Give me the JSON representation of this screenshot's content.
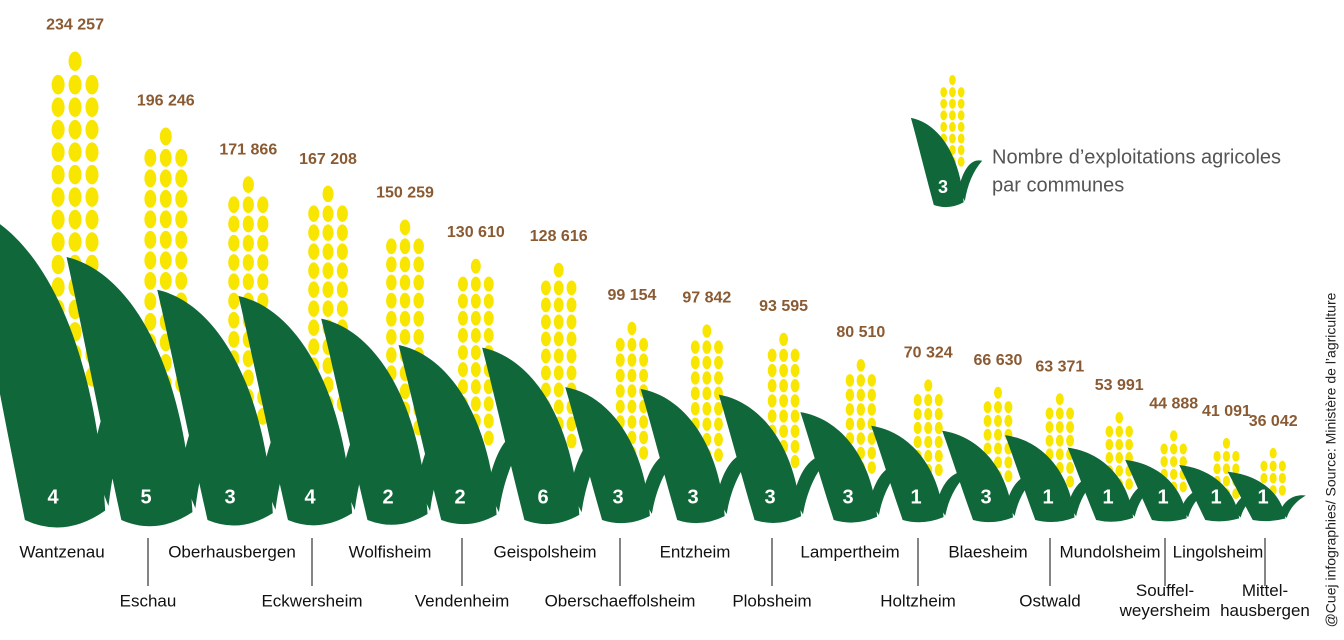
{
  "chart_data": {
    "type": "corn-pictogram",
    "categories": [
      "Wantzenau",
      "Eschau",
      "Oberhausbergen",
      "Eckwersheim",
      "Wolfisheim",
      "Vendenheim",
      "Geispolsheim",
      "Oberschaeffolsheim",
      "Entzheim",
      "Plobsheim",
      "Lampertheim",
      "Holtzheim",
      "Blaesheim",
      "Ostwald",
      "Mundolsheim",
      "Souffel-\nweyersheim",
      "Lingolsheim",
      "Mittel-\nhausbergen"
    ],
    "values": [
      234257,
      196246,
      171866,
      167208,
      150259,
      130610,
      128616,
      99154,
      97842,
      93595,
      80510,
      70324,
      66630,
      63371,
      53991,
      44888,
      41091,
      36042
    ],
    "value_labels": [
      "234 257",
      "196 246",
      "171 866",
      "167 208",
      "150 259",
      "130 610",
      "128 616",
      "99 154",
      "97 842",
      "93 595",
      "80 510",
      "70 324",
      "66 630",
      "63 371",
      "53 991",
      "44 888",
      "41 091",
      "36 042"
    ],
    "counts": [
      4,
      5,
      3,
      4,
      2,
      2,
      6,
      3,
      3,
      3,
      3,
      1,
      3,
      1,
      1,
      1,
      1,
      1
    ],
    "legend_count": 3,
    "legend_text": [
      "Nombre d’exploitations agricoles",
      "par communes"
    ],
    "credit": "@Cuej infographies/ Source: Ministère de l’agriculture",
    "leaf_color": "#10673a",
    "cob_color": "#f8e500",
    "label_color": "#8a5a32"
  }
}
